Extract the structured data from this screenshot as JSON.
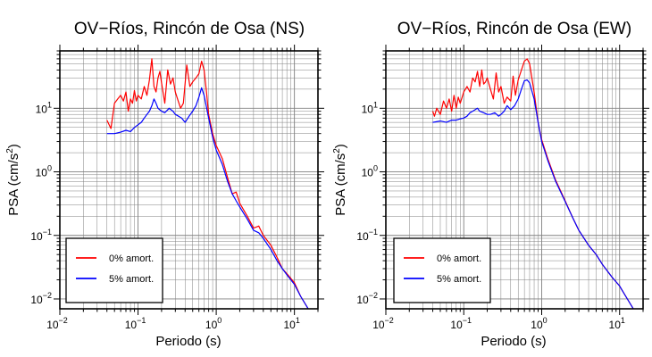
{
  "colors": {
    "undamped": "#ff0000",
    "damped": "#0000ff",
    "grid": "#808080"
  },
  "chart_data": [
    {
      "type": "line",
      "title": "OV−Ríos, Rincón de Osa (NS)",
      "xlabel": "Periodo (s)",
      "ylabel_main": "PSA (cm/s",
      "ylabel_sup": "2",
      "ylabel_tail": ")",
      "xscale": "log",
      "yscale": "log",
      "xlim": [
        0.01,
        20
      ],
      "ylim": [
        0.007,
        80
      ],
      "x_ticks": [
        {
          "base": "10",
          "exp": "−2"
        },
        {
          "base": "10",
          "exp": "−1"
        },
        {
          "base": "10",
          "exp": "0"
        },
        {
          "base": "10",
          "exp": "1"
        }
      ],
      "y_ticks": [
        {
          "base": "10",
          "exp": "−2"
        },
        {
          "base": "10",
          "exp": "−1"
        },
        {
          "base": "10",
          "exp": "0"
        },
        {
          "base": "10",
          "exp": "1"
        }
      ],
      "grid": true,
      "legend_position": "bottom-left",
      "series": [
        {
          "name": "0% amort.",
          "color": "#ff0000",
          "x": [
            0.04,
            0.045,
            0.05,
            0.055,
            0.06,
            0.065,
            0.07,
            0.075,
            0.08,
            0.085,
            0.09,
            0.095,
            0.1,
            0.11,
            0.12,
            0.13,
            0.14,
            0.15,
            0.16,
            0.17,
            0.18,
            0.19,
            0.2,
            0.22,
            0.24,
            0.26,
            0.28,
            0.3,
            0.32,
            0.35,
            0.38,
            0.42,
            0.46,
            0.5,
            0.55,
            0.6,
            0.65,
            0.7,
            0.75,
            0.8,
            0.9,
            1.0,
            1.2,
            1.4,
            1.6,
            1.8,
            2.0,
            2.5,
            3.0,
            3.5,
            4.0,
            5.0,
            6.0,
            7.0,
            8.0,
            10.0,
            12.0,
            15.0
          ],
          "y": [
            6.5,
            4.8,
            12.0,
            14.0,
            16.0,
            13.0,
            18.0,
            9.0,
            14.0,
            12.0,
            19.0,
            13.0,
            16.0,
            14.0,
            22.0,
            16.0,
            28.0,
            60.0,
            22.0,
            18.0,
            30.0,
            38.0,
            25.0,
            12.0,
            40.0,
            24.0,
            30.0,
            18.0,
            14.0,
            10.0,
            12.0,
            48.0,
            22.0,
            26.0,
            30.0,
            35.0,
            55.0,
            40.0,
            18.0,
            8.0,
            4.0,
            2.6,
            1.6,
            0.8,
            0.45,
            0.48,
            0.32,
            0.2,
            0.13,
            0.14,
            0.1,
            0.07,
            0.045,
            0.03,
            0.025,
            0.018,
            0.011,
            0.007
          ]
        },
        {
          "name": "5% amort.",
          "color": "#0000ff",
          "x": [
            0.04,
            0.05,
            0.06,
            0.07,
            0.08,
            0.09,
            0.1,
            0.11,
            0.12,
            0.13,
            0.14,
            0.15,
            0.16,
            0.17,
            0.18,
            0.2,
            0.22,
            0.25,
            0.28,
            0.3,
            0.33,
            0.36,
            0.4,
            0.45,
            0.5,
            0.55,
            0.6,
            0.65,
            0.7,
            0.8,
            0.9,
            1.0,
            1.2,
            1.4,
            1.6,
            1.8,
            2.0,
            2.5,
            3.0,
            3.5,
            4.0,
            5.0,
            6.0,
            7.0,
            8.0,
            10.0,
            12.0,
            15.0
          ],
          "y": [
            4.0,
            4.0,
            4.2,
            4.5,
            4.3,
            5.0,
            5.5,
            6.0,
            7.0,
            8.0,
            9.0,
            11.0,
            14.0,
            12.0,
            10.0,
            9.0,
            8.5,
            10.0,
            9.0,
            8.0,
            7.5,
            7.0,
            6.0,
            7.5,
            9.0,
            11.0,
            15.0,
            21.0,
            16.0,
            7.0,
            3.5,
            2.2,
            1.3,
            0.7,
            0.45,
            0.35,
            0.28,
            0.18,
            0.12,
            0.11,
            0.09,
            0.06,
            0.04,
            0.03,
            0.024,
            0.017,
            0.011,
            0.007
          ]
        }
      ]
    },
    {
      "type": "line",
      "title": "OV−Ríos, Rincón de Osa (EW)",
      "xlabel": "Periodo (s)",
      "ylabel_main": "PSA (cm/s",
      "ylabel_sup": "2",
      "ylabel_tail": ")",
      "xscale": "log",
      "yscale": "log",
      "xlim": [
        0.01,
        20
      ],
      "ylim": [
        0.007,
        80
      ],
      "x_ticks": [
        {
          "base": "10",
          "exp": "−2"
        },
        {
          "base": "10",
          "exp": "−1"
        },
        {
          "base": "10",
          "exp": "0"
        },
        {
          "base": "10",
          "exp": "1"
        }
      ],
      "y_ticks": [
        {
          "base": "10",
          "exp": "−2"
        },
        {
          "base": "10",
          "exp": "−1"
        },
        {
          "base": "10",
          "exp": "0"
        },
        {
          "base": "10",
          "exp": "1"
        }
      ],
      "grid": true,
      "legend_position": "bottom-left",
      "series": [
        {
          "name": "0% amort.",
          "color": "#ff0000",
          "x": [
            0.04,
            0.042,
            0.045,
            0.05,
            0.055,
            0.06,
            0.065,
            0.07,
            0.075,
            0.08,
            0.085,
            0.09,
            0.1,
            0.11,
            0.12,
            0.13,
            0.14,
            0.15,
            0.16,
            0.17,
            0.18,
            0.19,
            0.2,
            0.22,
            0.24,
            0.26,
            0.28,
            0.3,
            0.33,
            0.36,
            0.4,
            0.43,
            0.46,
            0.5,
            0.55,
            0.6,
            0.65,
            0.7,
            0.8,
            0.9,
            1.0,
            1.2,
            1.5,
            2.0,
            2.5,
            3.0,
            4.0,
            5.0,
            6.0,
            8.0,
            10.0,
            12.0,
            15.0
          ],
          "y": [
            9.0,
            7.5,
            10.0,
            8.0,
            13.0,
            10.0,
            14.0,
            9.0,
            16.0,
            10.0,
            15.0,
            12.0,
            18.0,
            22.0,
            18.0,
            30.0,
            26.0,
            38.0,
            22.0,
            40.0,
            24.0,
            26.0,
            30.0,
            20.0,
            14.0,
            36.0,
            18.0,
            22.0,
            12.0,
            15.0,
            13.0,
            32.0,
            16.0,
            28.0,
            40.0,
            55.0,
            60.0,
            50.0,
            18.0,
            6.0,
            3.2,
            1.6,
            0.75,
            0.35,
            0.19,
            0.12,
            0.07,
            0.05,
            0.035,
            0.022,
            0.016,
            0.011,
            0.007
          ]
        },
        {
          "name": "5% amort.",
          "color": "#0000ff",
          "x": [
            0.04,
            0.05,
            0.06,
            0.07,
            0.08,
            0.09,
            0.1,
            0.11,
            0.12,
            0.13,
            0.14,
            0.15,
            0.16,
            0.18,
            0.2,
            0.22,
            0.25,
            0.28,
            0.3,
            0.33,
            0.36,
            0.4,
            0.45,
            0.5,
            0.55,
            0.6,
            0.65,
            0.7,
            0.8,
            0.9,
            1.0,
            1.2,
            1.5,
            2.0,
            2.5,
            3.0,
            4.0,
            5.0,
            6.0,
            8.0,
            10.0,
            12.0,
            15.0
          ],
          "y": [
            6.0,
            6.3,
            6.0,
            6.5,
            6.5,
            6.8,
            7.0,
            7.5,
            8.5,
            9.0,
            9.5,
            10.0,
            9.0,
            8.5,
            8.0,
            8.0,
            8.5,
            7.5,
            8.0,
            9.0,
            11.0,
            9.5,
            11.0,
            14.0,
            20.0,
            27.0,
            28.0,
            25.0,
            14.0,
            6.0,
            3.0,
            1.5,
            0.72,
            0.34,
            0.19,
            0.12,
            0.07,
            0.05,
            0.035,
            0.022,
            0.016,
            0.011,
            0.007
          ]
        }
      ]
    }
  ]
}
